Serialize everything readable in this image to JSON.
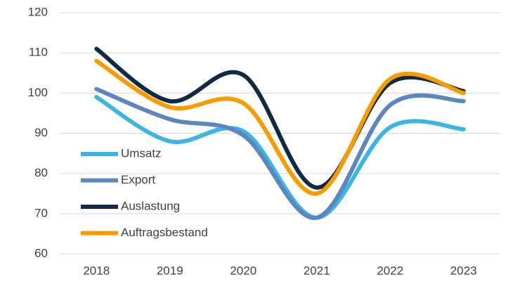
{
  "chart_data": {
    "type": "line",
    "categories": [
      "2018",
      "2019",
      "2020",
      "2021",
      "2022",
      "2023"
    ],
    "series": [
      {
        "name": "Umsatz",
        "color": "#3db5e3",
        "values": [
          99,
          88,
          90.5,
          69,
          91.5,
          91
        ]
      },
      {
        "name": "Export",
        "color": "#5b86be",
        "values": [
          101,
          93.5,
          89.5,
          69,
          97,
          98
        ]
      },
      {
        "name": "Auslastung",
        "color": "#0f2a45",
        "values": [
          111,
          98,
          104.5,
          76.5,
          102.5,
          100.5
        ]
      },
      {
        "name": "Auftragsbestand",
        "color": "#f69c00",
        "values": [
          108,
          96.5,
          97.5,
          75,
          103.5,
          100
        ]
      }
    ],
    "ylim": [
      60,
      120
    ],
    "yticks": [
      60,
      70,
      80,
      90,
      100,
      110,
      120
    ],
    "grid": true,
    "legend": "lower left"
  }
}
